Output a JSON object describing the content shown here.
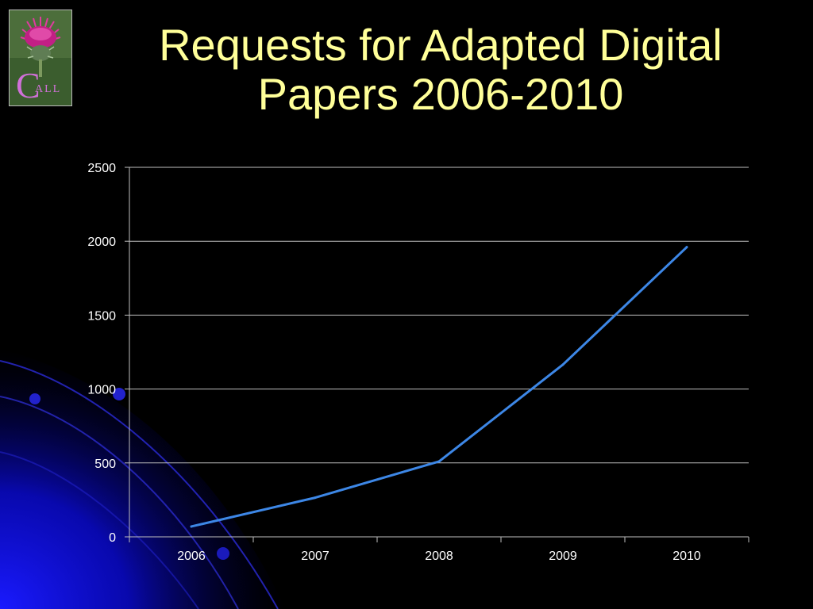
{
  "slide": {
    "title": "Requests for Adapted Digital Papers 2006-2010",
    "background_color": "#000000",
    "title_color": "#ffff99",
    "logo": {
      "icon": "thistle-logo-icon",
      "text": "CALL"
    }
  },
  "chart_data": {
    "type": "line",
    "categories": [
      "2006",
      "2007",
      "2008",
      "2009",
      "2010"
    ],
    "series": [
      {
        "values": [
          70,
          265,
          510,
          1165,
          1960
        ],
        "color": "#3d87e6"
      }
    ],
    "title": "",
    "xlabel": "",
    "ylabel": "",
    "ylim": [
      0,
      2500
    ],
    "yticks": [
      0,
      500,
      1000,
      1500,
      2000,
      2500
    ],
    "grid": true,
    "legend": "none"
  }
}
